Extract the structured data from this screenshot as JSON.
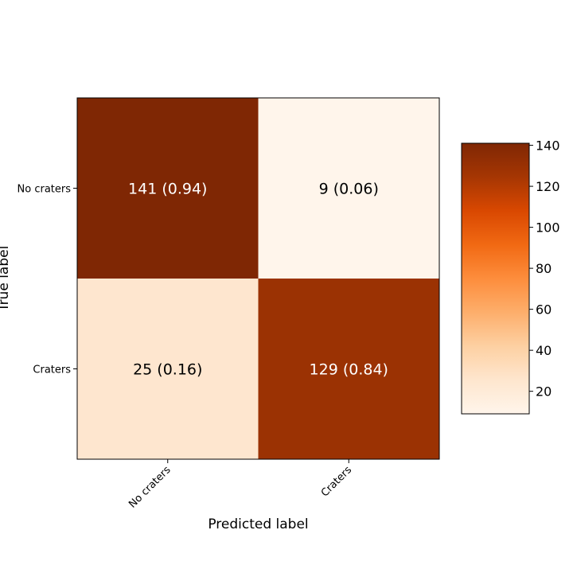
{
  "chart_data": {
    "type": "heatmap",
    "title": "",
    "xlabel": "Predicted label",
    "ylabel": "True label",
    "x_categories": [
      "No craters",
      "Craters"
    ],
    "y_categories": [
      "No craters",
      "Craters"
    ],
    "values": [
      [
        141,
        9
      ],
      [
        25,
        129
      ]
    ],
    "normalized": [
      [
        0.94,
        0.06
      ],
      [
        0.16,
        0.84
      ]
    ],
    "cell_labels": [
      [
        "141 (0.94)",
        "9 (0.06)"
      ],
      [
        "25 (0.16)",
        "129 (0.84)"
      ]
    ],
    "colorbar": {
      "range": [
        9,
        141
      ],
      "ticks": [
        20,
        40,
        60,
        80,
        100,
        120,
        140
      ],
      "tick_labels": [
        "20",
        "40",
        "60",
        "80",
        "100",
        "120",
        "140"
      ],
      "colormap": "oranges",
      "colors": [
        "#fff5eb",
        "#fee6ce",
        "#fdd0a2",
        "#fdae6b",
        "#fd8d3c",
        "#f16913",
        "#d94801",
        "#a63603",
        "#7f2704"
      ]
    },
    "grid": false
  }
}
